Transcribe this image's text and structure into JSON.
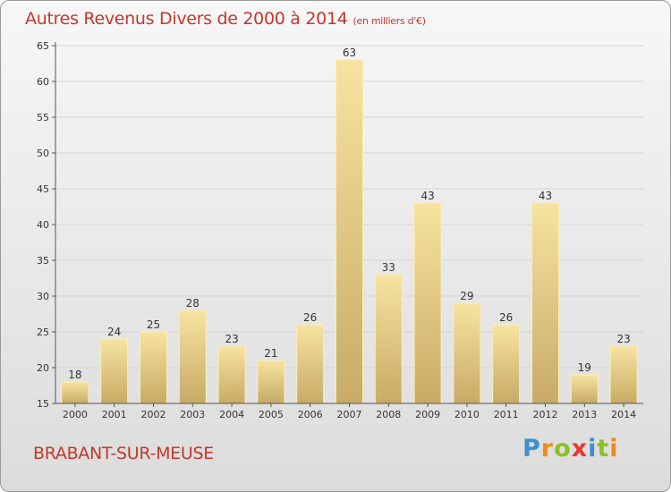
{
  "header": {
    "title": "Autres Revenus Divers de 2000 à 2014",
    "unit": "(en milliers d'€)"
  },
  "footer": {
    "commune": "BRABANT-SUR-MEUSE",
    "logo_letters": [
      "P",
      "r",
      "o",
      "x",
      "i",
      "t",
      "i"
    ]
  },
  "colors": {
    "title": "#c0392b",
    "bar_light": "#f7e3a0",
    "bar_dark": "#c7ab66",
    "grid": "#d4d4d4",
    "axis": "#555555"
  },
  "chart_data": {
    "type": "bar",
    "categories": [
      "2000",
      "2001",
      "2002",
      "2003",
      "2004",
      "2005",
      "2006",
      "2007",
      "2008",
      "2009",
      "2010",
      "2011",
      "2012",
      "2013",
      "2014"
    ],
    "values": [
      18,
      24,
      25,
      28,
      23,
      21,
      26,
      63,
      33,
      43,
      29,
      26,
      43,
      19,
      23
    ],
    "title": "Autres Revenus Divers de 2000 à 2014",
    "xlabel": "",
    "ylabel": "",
    "ylim": [
      15,
      65
    ],
    "yticks": [
      15,
      20,
      25,
      30,
      35,
      40,
      45,
      50,
      55,
      60,
      65
    ],
    "grid": true
  }
}
